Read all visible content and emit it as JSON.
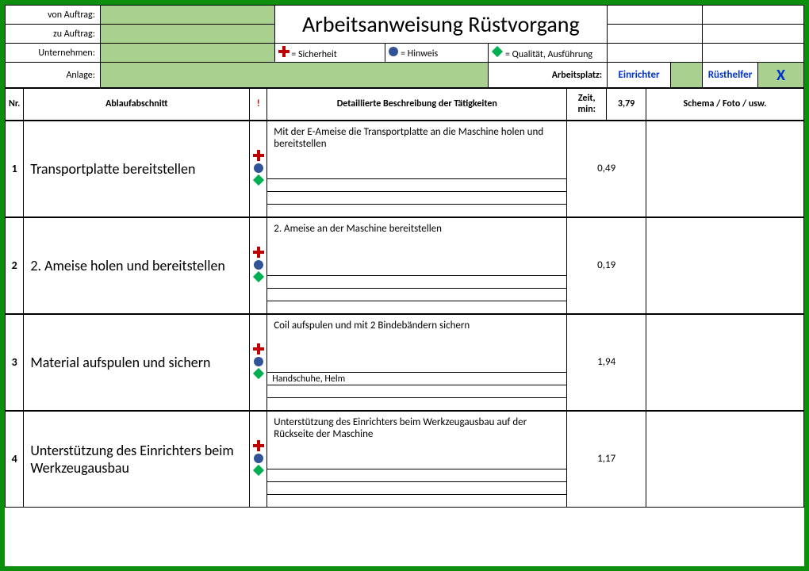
{
  "labels": {
    "von_auftrag": "von Auftrag:",
    "zu_auftrag": "zu Auftrag:",
    "unternehmen": "Unternehmen:",
    "anlage": "Anlage:",
    "arbeitsplatz": "Arbeitsplatz:"
  },
  "title": "Arbeitsanweisung Rüstvorgang",
  "legend": {
    "sicherheit": "= Sicherheit",
    "hinweis": "= Hinweis",
    "qualitaet": "= Qualität, Ausführung"
  },
  "roles": {
    "einrichter": "Einrichter",
    "ruesthelfer": "Rüsthelfer",
    "x": "X"
  },
  "columns": {
    "nr": "Nr.",
    "abschnitt": "Ablaufabschnitt",
    "bang": "!",
    "beschreibung": "Detaillierte Beschreibung der Tätigkeiten",
    "zeit": "Zeit, min:",
    "zeit_total": "3,79",
    "schema": "Schema / Foto / usw."
  },
  "icons": {
    "plus_color": "#c00000",
    "circle_color": "#305496",
    "diamond_color": "#00b050"
  },
  "colors": {
    "border_green": "#0d8f0d",
    "fill_green": "#a9d08e",
    "link_blue": "#0033cc"
  },
  "steps": [
    {
      "nr": "1",
      "name": "Transportplatte bereitstellen",
      "desc": "Mit der E-Ameise die Transportplatte an die Maschine holen und bereitstellen",
      "time": "0,49",
      "safety": "",
      "note": "",
      "quality": ""
    },
    {
      "nr": "2",
      "name": "2. Ameise holen und bereitstellen",
      "desc": "2. Ameise an der Maschine bereitstellen",
      "time": "0,19",
      "safety": "",
      "note": "",
      "quality": ""
    },
    {
      "nr": "3",
      "name": "Material aufspulen und sichern",
      "desc": "Coil aufspulen und mit 2 Bindebändern sichern",
      "time": "1,94",
      "safety": "Handschuhe, Helm",
      "note": "",
      "quality": ""
    },
    {
      "nr": "4",
      "name": "Unterstützung des Einrichters beim Werkzeugausbau",
      "desc": "Unterstützung des Einrichters beim Werkzeugausbau auf der Rückseite der Maschine",
      "time": "1,17",
      "safety": "",
      "note": "",
      "quality": ""
    }
  ]
}
